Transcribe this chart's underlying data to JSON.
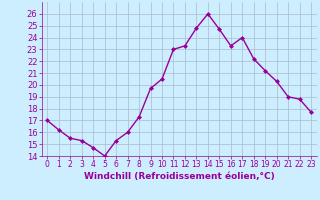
{
  "x": [
    0,
    1,
    2,
    3,
    4,
    5,
    6,
    7,
    8,
    9,
    10,
    11,
    12,
    13,
    14,
    15,
    16,
    17,
    18,
    19,
    20,
    21,
    22,
    23
  ],
  "y": [
    17.0,
    16.2,
    15.5,
    15.3,
    14.7,
    14.0,
    15.3,
    16.0,
    17.3,
    19.7,
    20.5,
    23.0,
    23.3,
    24.8,
    26.0,
    24.7,
    23.3,
    24.0,
    22.2,
    21.2,
    20.3,
    19.0,
    18.8,
    17.7
  ],
  "line_color": "#990099",
  "marker": "D",
  "marker_size": 2.0,
  "bg_color": "#cceeff",
  "grid_color": "#aabbcc",
  "xlabel": "Windchill (Refroidissement éolien,°C)",
  "xlabel_color": "#990099",
  "tick_color": "#990099",
  "ylim": [
    14,
    27
  ],
  "xlim": [
    -0.5,
    23.5
  ],
  "yticks": [
    14,
    15,
    16,
    17,
    18,
    19,
    20,
    21,
    22,
    23,
    24,
    25,
    26
  ],
  "xtick_labels": [
    "0",
    "1",
    "2",
    "3",
    "4",
    "5",
    "6",
    "7",
    "8",
    "9",
    "10",
    "11",
    "12",
    "13",
    "14",
    "15",
    "16",
    "17",
    "18",
    "19",
    "20",
    "21",
    "22",
    "23"
  ],
  "linewidth": 1.0,
  "tick_fontsize": 5.5,
  "ytick_fontsize": 6.0,
  "xlabel_fontsize": 6.5
}
